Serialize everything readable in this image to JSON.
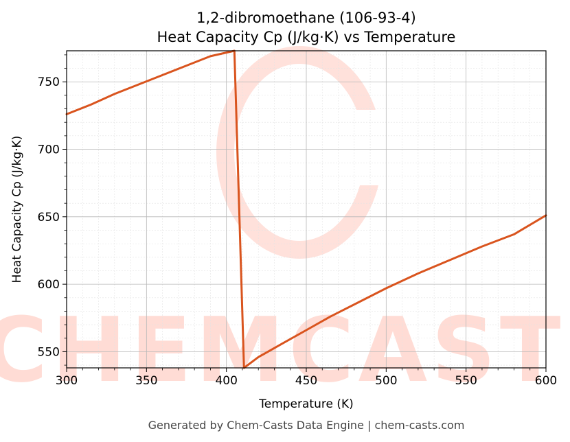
{
  "chart_data": {
    "type": "line",
    "title": "1,2-dibromoethane (106-93-4)",
    "subtitle": "Heat Capacity Cp (J/kg·K) vs Temperature",
    "xlabel": "Temperature (K)",
    "ylabel": "Heat Capacity Cp (J/kg·K)",
    "xlim": [
      300,
      600
    ],
    "ylim": [
      538,
      773
    ],
    "xticks": [
      300,
      350,
      400,
      450,
      500,
      550,
      600
    ],
    "yticks": [
      550,
      600,
      650,
      700,
      750
    ],
    "grid": true,
    "color": "#d9541e",
    "series": [
      {
        "x": [
          300,
          315,
          330,
          345,
          360,
          375,
          390,
          405,
          411,
          420,
          435,
          450,
          465,
          480,
          500,
          520,
          540,
          560,
          580,
          600
        ],
        "y": [
          726,
          733,
          741,
          748,
          755,
          762,
          769,
          773,
          538,
          546,
          556,
          566,
          576,
          585,
          597,
          608,
          618,
          628,
          637,
          651
        ]
      }
    ]
  },
  "watermark": {
    "text": "CHEMCASTS",
    "color": "#ffdcd5"
  },
  "footer": {
    "text": "Generated by Chem-Casts Data Engine | chem-casts.com"
  }
}
